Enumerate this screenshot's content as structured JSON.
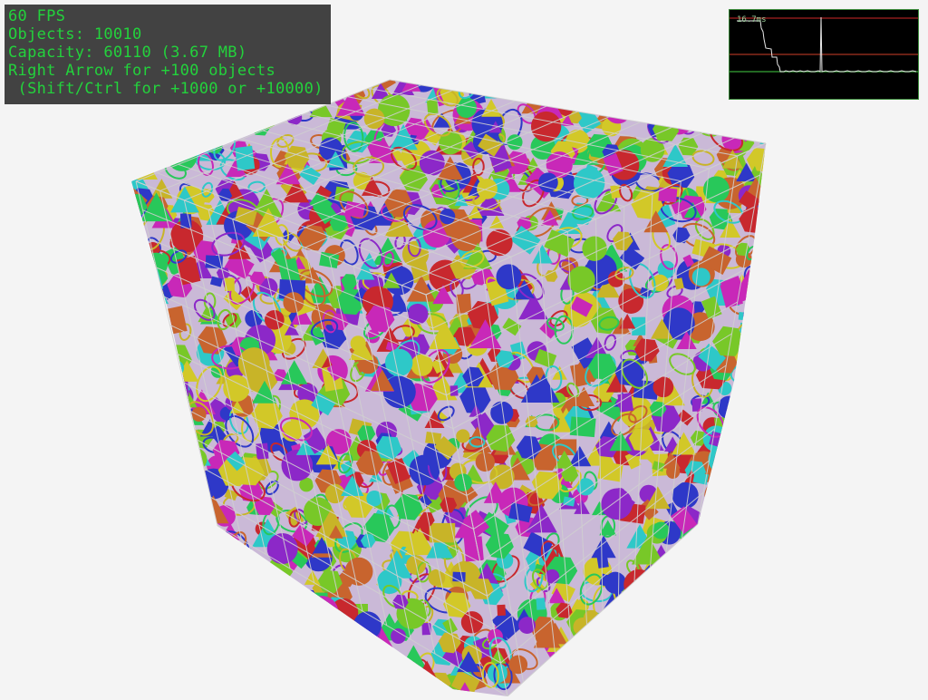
{
  "hud": {
    "fps": "60 FPS",
    "objects": "Objects: 10010",
    "capacity": "Capacity: 60110 (3.67 MB)",
    "hint1": "Right Arrow for +100 objects",
    "hint2": " (Shift/Ctrl for +1000 or +10000)",
    "text_color": "#23d23c"
  },
  "perf_graph": {
    "label": "16.7ms",
    "colors": {
      "upper_line": "#8b1a1a",
      "mid_line": "#8b2a1a",
      "target_line": "#2e8b2e",
      "trace": "#e8e8e8"
    }
  },
  "scene": {
    "palette": [
      "#c8282e",
      "#2e38c8",
      "#2ec8c8",
      "#8c28c8",
      "#c828b8",
      "#78c828",
      "#c8b428",
      "#c8642e",
      "#28c85a",
      "#d2c828"
    ],
    "grid_color": "#d0d0d0"
  }
}
